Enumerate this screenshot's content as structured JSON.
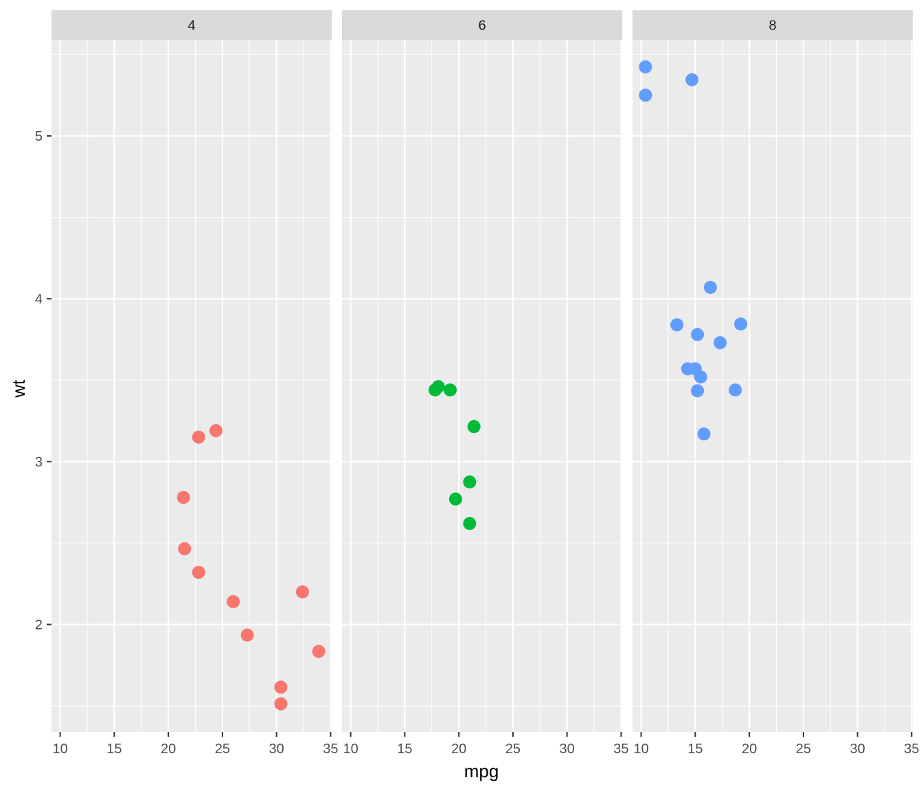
{
  "chart_data": {
    "type": "scatter",
    "facet_by": "cyl",
    "xlabel": "mpg",
    "ylabel": "wt",
    "xlim": [
      9.2,
      35.1
    ],
    "ylim": [
      1.34,
      5.59
    ],
    "x_ticks": [
      10,
      15,
      20,
      25,
      30,
      35
    ],
    "y_ticks": [
      2,
      3,
      4,
      5
    ],
    "grid": true,
    "legend": "none",
    "panels": [
      {
        "label": "4",
        "color": "#F8766D",
        "points": [
          {
            "x": 22.8,
            "y": 2.32
          },
          {
            "x": 24.4,
            "y": 3.19
          },
          {
            "x": 22.8,
            "y": 3.15
          },
          {
            "x": 32.4,
            "y": 2.2
          },
          {
            "x": 30.4,
            "y": 1.615
          },
          {
            "x": 33.9,
            "y": 1.835
          },
          {
            "x": 21.5,
            "y": 2.465
          },
          {
            "x": 27.3,
            "y": 1.935
          },
          {
            "x": 26.0,
            "y": 2.14
          },
          {
            "x": 30.4,
            "y": 1.513
          },
          {
            "x": 21.4,
            "y": 2.78
          }
        ]
      },
      {
        "label": "6",
        "color": "#00BA38",
        "points": [
          {
            "x": 21.0,
            "y": 2.62
          },
          {
            "x": 21.0,
            "y": 2.875
          },
          {
            "x": 21.4,
            "y": 3.215
          },
          {
            "x": 18.1,
            "y": 3.46
          },
          {
            "x": 19.2,
            "y": 3.44
          },
          {
            "x": 17.8,
            "y": 3.44
          },
          {
            "x": 19.7,
            "y": 2.77
          }
        ]
      },
      {
        "label": "8",
        "color": "#619CFF",
        "points": [
          {
            "x": 18.7,
            "y": 3.44
          },
          {
            "x": 14.3,
            "y": 3.57
          },
          {
            "x": 16.4,
            "y": 4.07
          },
          {
            "x": 17.3,
            "y": 3.73
          },
          {
            "x": 15.2,
            "y": 3.78
          },
          {
            "x": 10.4,
            "y": 5.25
          },
          {
            "x": 10.4,
            "y": 5.424
          },
          {
            "x": 14.7,
            "y": 5.345
          },
          {
            "x": 15.5,
            "y": 3.52
          },
          {
            "x": 15.2,
            "y": 3.435
          },
          {
            "x": 13.3,
            "y": 3.84
          },
          {
            "x": 19.2,
            "y": 3.845
          },
          {
            "x": 15.8,
            "y": 3.17
          },
          {
            "x": 15.0,
            "y": 3.57
          }
        ]
      }
    ]
  }
}
